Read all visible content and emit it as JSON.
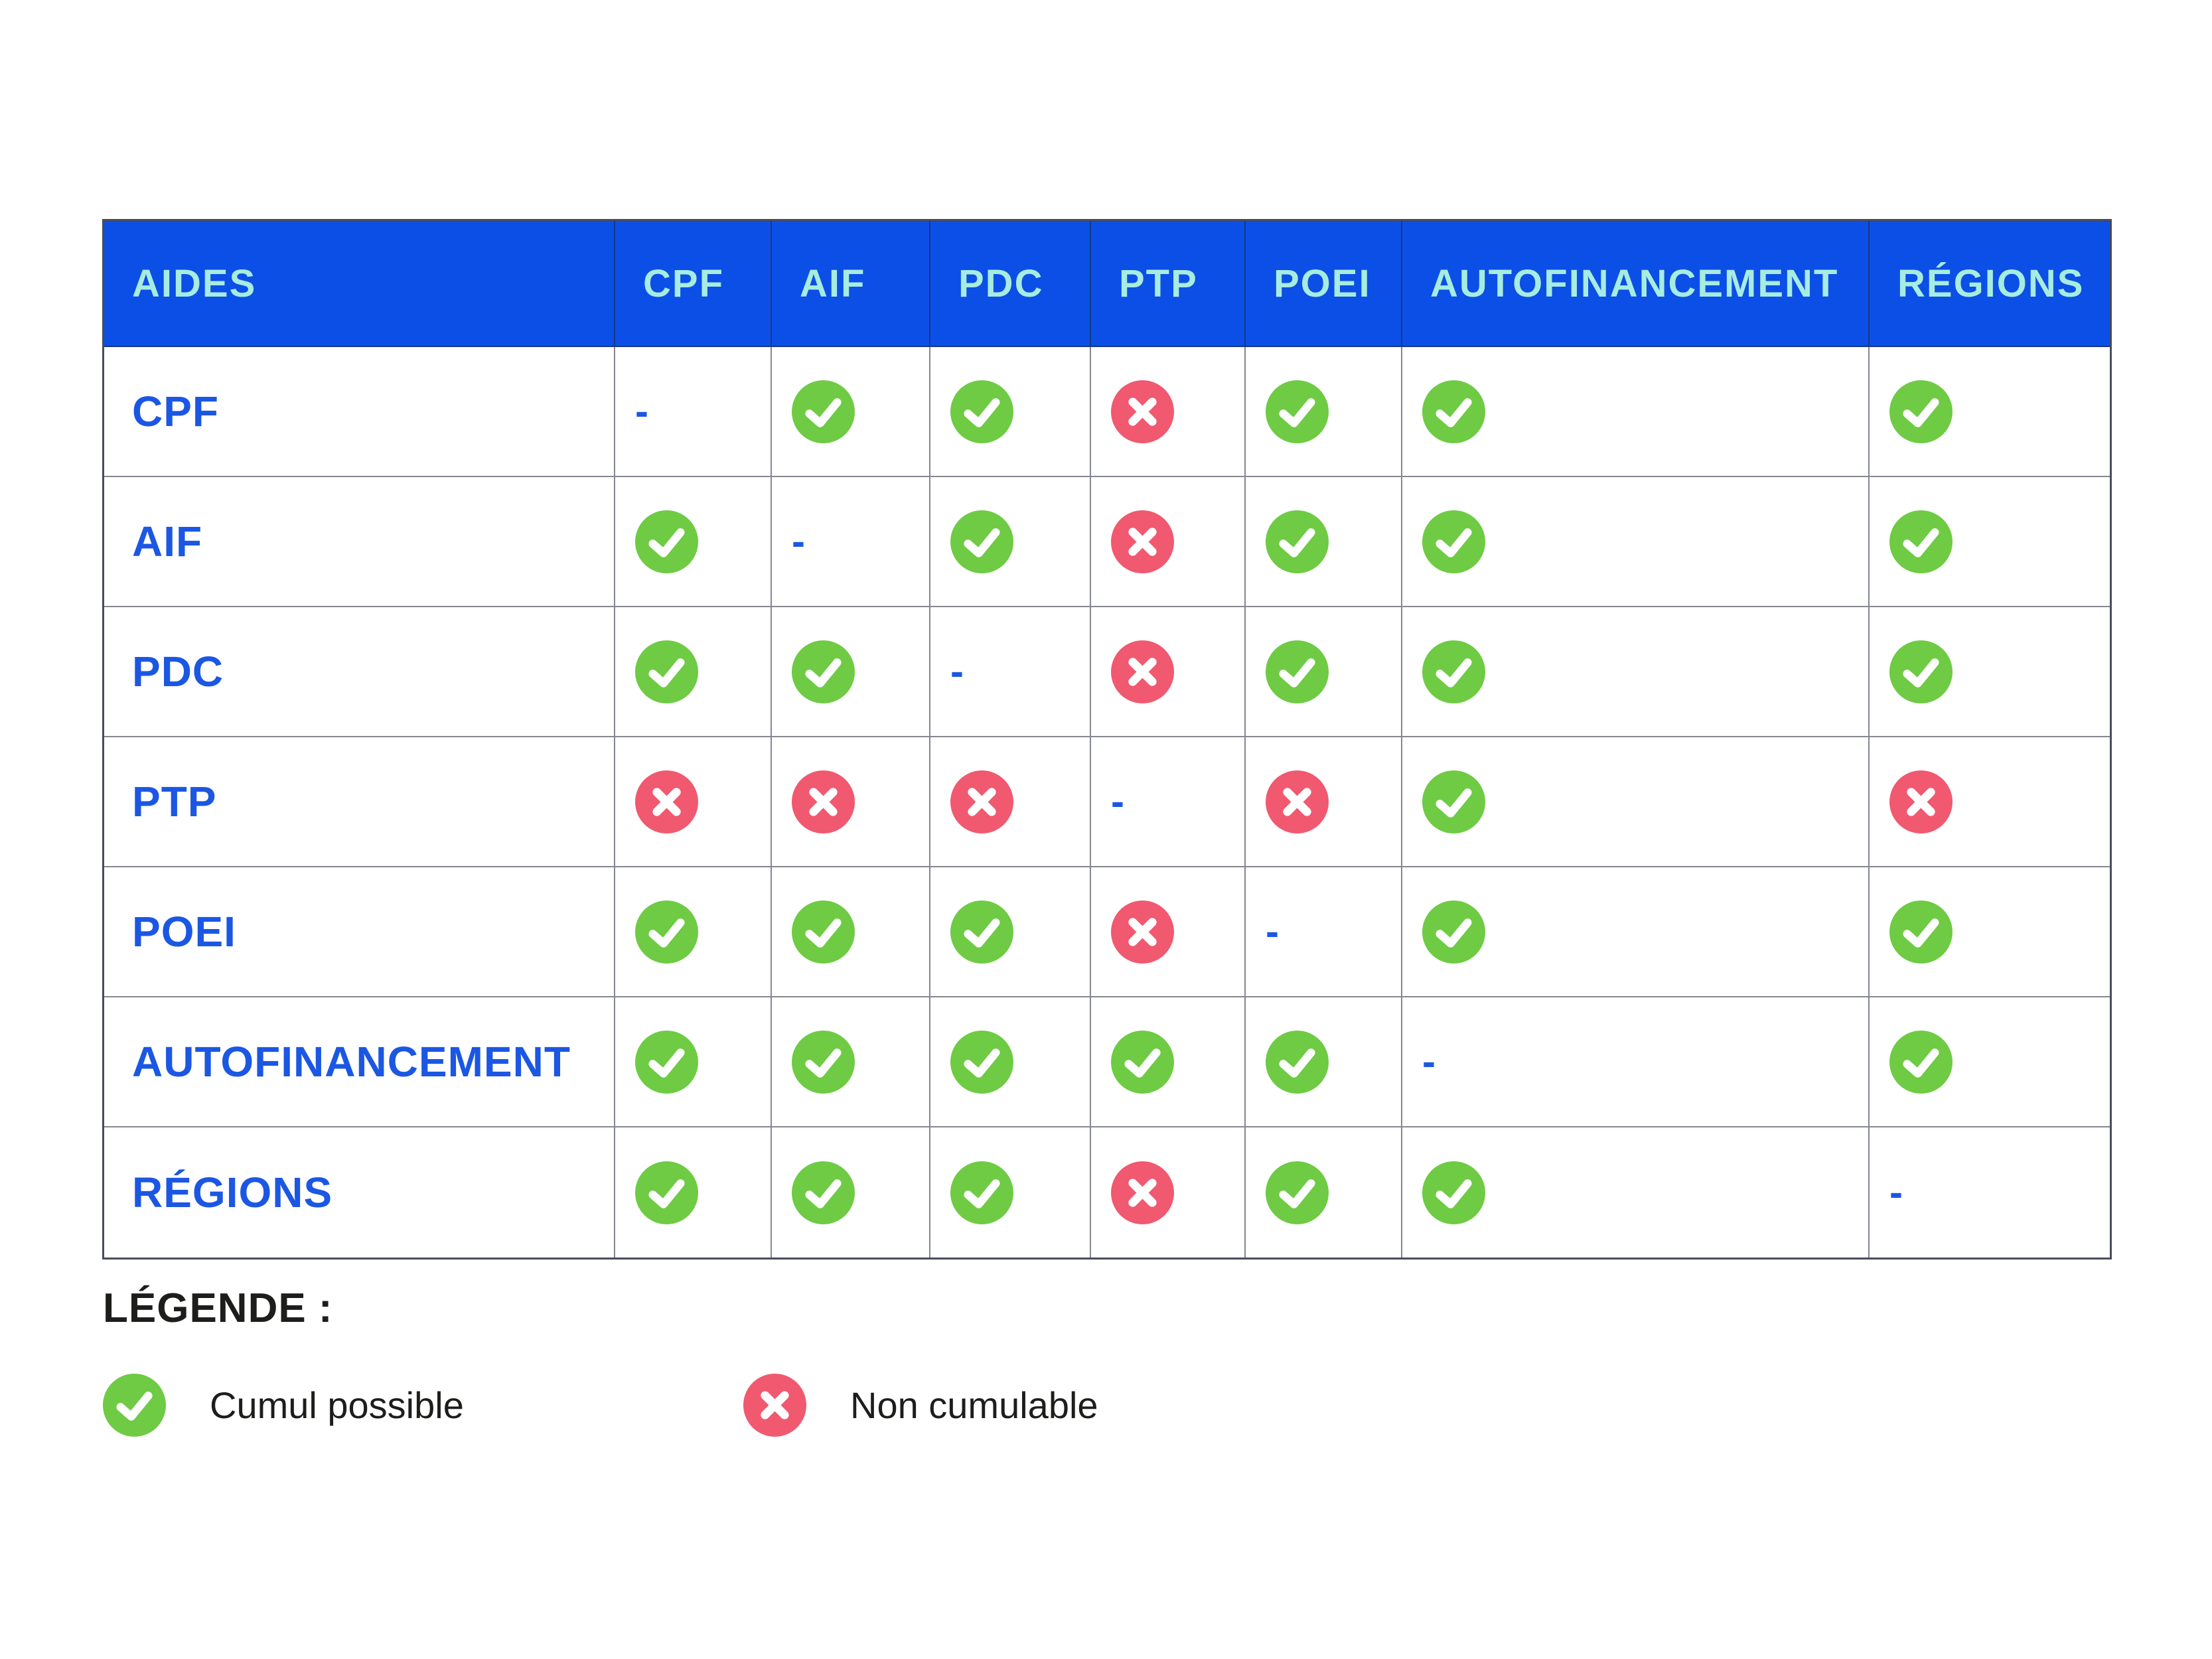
{
  "chart_data": {
    "type": "table",
    "title": "",
    "columns": [
      "AIDES",
      "CPF",
      "AIF",
      "PDC",
      "PTP",
      "POEI",
      "AUTOFINANCEMENT",
      "RÉGIONS"
    ],
    "rows": [
      {
        "label": "CPF",
        "values": [
          "self",
          "yes",
          "yes",
          "no",
          "yes",
          "yes",
          "yes"
        ]
      },
      {
        "label": "AIF",
        "values": [
          "yes",
          "self",
          "yes",
          "no",
          "yes",
          "yes",
          "yes"
        ]
      },
      {
        "label": "PDC",
        "values": [
          "yes",
          "yes",
          "self",
          "no",
          "yes",
          "yes",
          "yes"
        ]
      },
      {
        "label": "PTP",
        "values": [
          "no",
          "no",
          "no",
          "self",
          "no",
          "yes",
          "no"
        ]
      },
      {
        "label": "POEI",
        "values": [
          "yes",
          "yes",
          "yes",
          "no",
          "self",
          "yes",
          "yes"
        ]
      },
      {
        "label": "AUTOFINANCEMENT",
        "values": [
          "yes",
          "yes",
          "yes",
          "yes",
          "yes",
          "self",
          "yes"
        ]
      },
      {
        "label": "RÉGIONS",
        "values": [
          "yes",
          "yes",
          "yes",
          "no",
          "yes",
          "yes",
          "self"
        ]
      }
    ],
    "value_meaning": {
      "yes": "Cumul possible",
      "no": "Non cumulable",
      "self": "-"
    }
  },
  "legend": {
    "title": "LÉGENDE :",
    "items": [
      {
        "icon": "check-circle-icon",
        "value": "yes",
        "label": "Cumul possible"
      },
      {
        "icon": "cross-circle-icon",
        "value": "no",
        "label": "Non cumulable"
      }
    ]
  },
  "colors": {
    "header_bg": "#0b4fe6",
    "header_text": "#a7ece1",
    "label_blue": "#1b57e3",
    "check_green": "#6ecb43",
    "cross_red": "#f0596f",
    "grid_line": "#5a5d68",
    "legend_text": "#1d1d1b"
  }
}
